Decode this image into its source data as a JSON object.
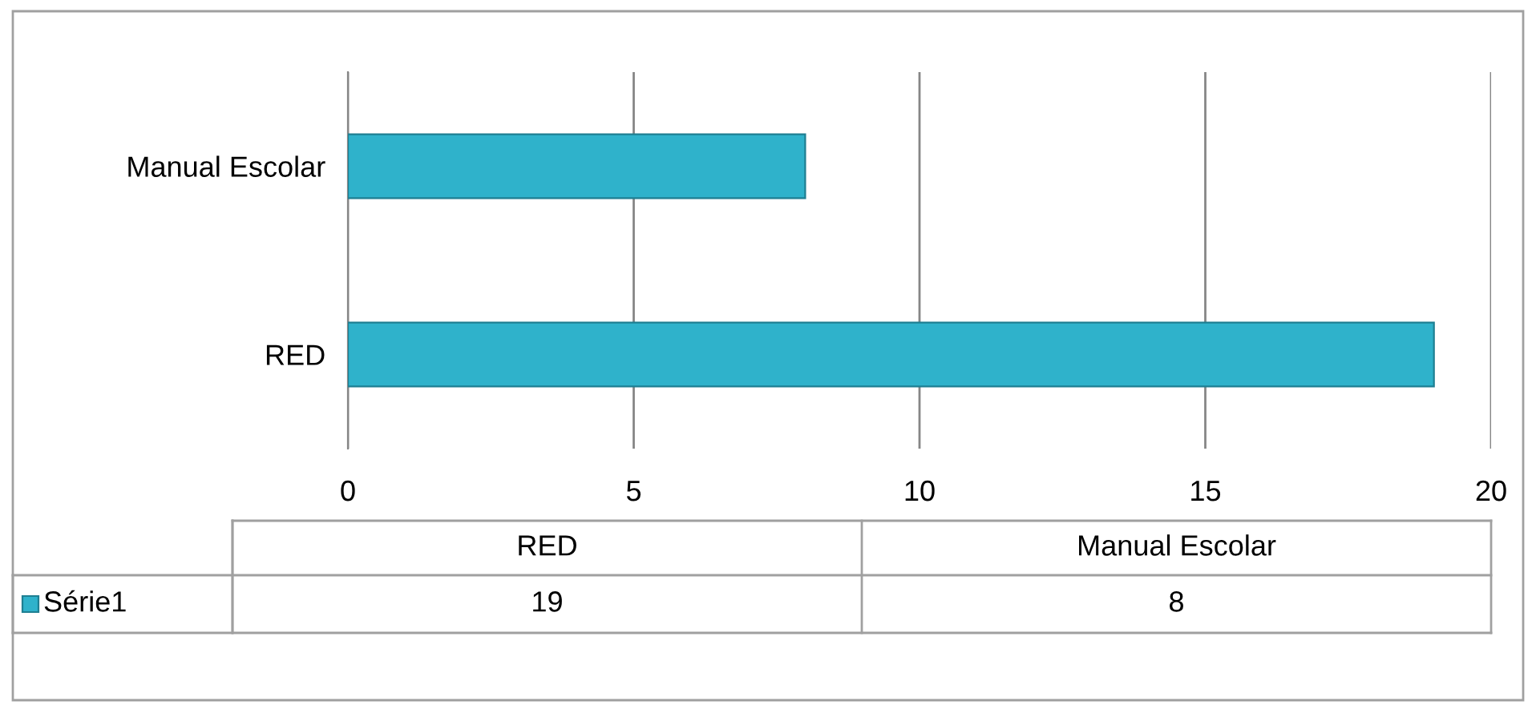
{
  "chart_data": [
    {
      "type": "bar",
      "orientation": "horizontal",
      "categories": [
        "Manual Escolar",
        "RED"
      ],
      "series": [
        {
          "color": "#2fb2cb",
          "values": [
            8,
            19
          ]
        }
      ],
      "xlim": [
        0,
        20
      ],
      "xticks": [
        0,
        5,
        10,
        15,
        20
      ],
      "grid": "x"
    },
    {
      "type": "other",
      "data_labels": true,
      "legend": "left",
      "categories": [
        "RED",
        "Manual Escolar"
      ],
      "series": [
        {
          "name": "Série1",
          "color": "#2fb2cb",
          "values": [
            19,
            8
          ]
        }
      ]
    }
  ]
}
